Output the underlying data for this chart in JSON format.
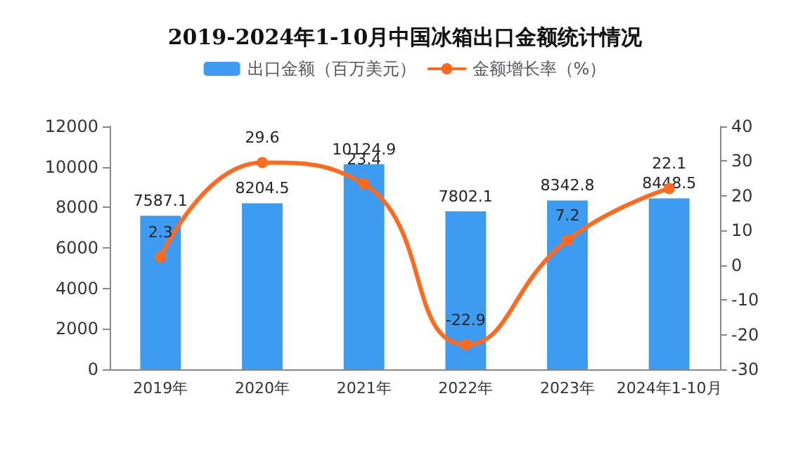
{
  "chart_data": {
    "type": "bar",
    "title": "2019-2024年1-10月中国冰箱出口金额统计情况",
    "categories": [
      "2019年",
      "2020年",
      "2021年",
      "2022年",
      "2023年",
      "2024年1-10月"
    ],
    "series": [
      {
        "name": "出口金额（百万美元）",
        "color": "#3d9cf0",
        "values": [
          7587.1,
          8204.5,
          10124.9,
          7802.1,
          8342.8,
          8448.5
        ]
      },
      {
        "name": "金额增长率（%）",
        "type": "line",
        "axis": "y2",
        "color": "#ff6a1f",
        "values": [
          2.3,
          29.6,
          23.4,
          -22.9,
          7.2,
          22.1
        ],
        "marker": "circle"
      }
    ],
    "ylim": [
      0,
      12000
    ],
    "yticks": [
      0,
      2000,
      4000,
      6000,
      8000,
      10000,
      12000
    ],
    "y2lim": [
      -30,
      40
    ],
    "y2ticks": [
      -30,
      -20,
      -10,
      0,
      10,
      20,
      30,
      40
    ],
    "data_labels": true,
    "grid": false,
    "legend": "top"
  }
}
